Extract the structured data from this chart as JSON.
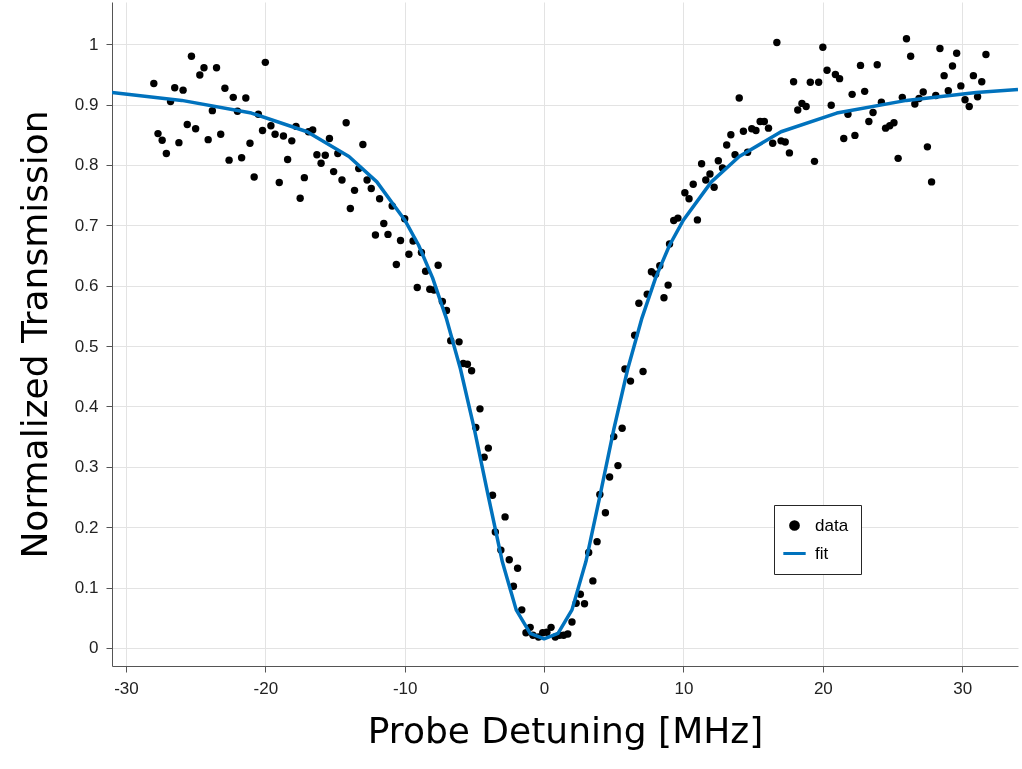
{
  "chart_data": {
    "type": "scatter",
    "xlabel": "Probe Detuning [MHz]",
    "ylabel": "Normalized Transmission",
    "xlim": [
      -31,
      34
    ],
    "ylim": [
      -0.03,
      1.07
    ],
    "xticks": [
      -30,
      -20,
      -10,
      0,
      10,
      20,
      30
    ],
    "yticks": [
      0,
      0.1,
      0.2,
      0.3,
      0.4,
      0.5,
      0.6,
      0.7,
      0.8,
      0.9,
      1
    ],
    "grid": true,
    "legend": "bottom right",
    "marker": "circle",
    "series": [
      {
        "name": "data",
        "color": "#000000",
        "x": [
          -28.0,
          -27.7,
          -27.4,
          -27.1,
          -26.8,
          -26.5,
          -26.2,
          -25.9,
          -25.6,
          -25.3,
          -25.0,
          -24.7,
          -24.4,
          -24.1,
          -23.8,
          -23.5,
          -23.2,
          -22.9,
          -22.6,
          -22.3,
          -22.0,
          -21.7,
          -21.4,
          -21.1,
          -20.8,
          -20.5,
          -20.2,
          -20.0,
          -19.6,
          -19.3,
          -19.0,
          -18.7,
          -18.4,
          -18.1,
          -17.8,
          -17.5,
          -17.2,
          -16.9,
          -16.6,
          -16.3,
          -16.0,
          -15.7,
          -15.4,
          -15.1,
          -14.8,
          -14.5,
          -14.2,
          -13.9,
          -13.6,
          -13.3,
          -13.0,
          -12.7,
          -12.4,
          -12.1,
          -11.8,
          -11.5,
          -11.2,
          -10.9,
          -10.6,
          -10.3,
          -10.0,
          -9.7,
          -9.4,
          -9.1,
          -8.8,
          -8.5,
          -8.2,
          -7.9,
          -7.6,
          -7.3,
          -7.0,
          -6.7,
          -6.1,
          -5.8,
          -5.5,
          -5.2,
          -4.9,
          -4.6,
          -4.3,
          -4.0,
          -3.7,
          -3.5,
          -3.1,
          -2.8,
          -2.5,
          -2.2,
          -1.9,
          -1.6,
          -1.3,
          -1.0,
          -0.8,
          -0.4,
          -0.1,
          0.2,
          0.5,
          0.8,
          1.1,
          1.4,
          1.7,
          2.0,
          2.3,
          2.6,
          2.9,
          3.2,
          3.5,
          3.8,
          4.0,
          4.4,
          4.7,
          5.0,
          5.3,
          5.6,
          5.8,
          6.2,
          6.5,
          6.8,
          7.1,
          7.4,
          7.7,
          8.0,
          8.3,
          8.6,
          8.9,
          9.0,
          9.3,
          9.6,
          10.1,
          10.4,
          10.7,
          11.0,
          11.3,
          11.6,
          11.9,
          12.2,
          12.5,
          12.8,
          13.1,
          13.4,
          13.7,
          14.0,
          14.3,
          14.6,
          14.9,
          15.2,
          15.5,
          15.8,
          16.1,
          16.4,
          16.7,
          17.0,
          17.3,
          17.6,
          17.9,
          18.2,
          18.5,
          18.8,
          19.1,
          19.4,
          19.7,
          20.0,
          20.3,
          20.6,
          20.9,
          21.2,
          21.5,
          21.8,
          22.1,
          22.3,
          22.7,
          23.0,
          23.3,
          23.6,
          23.9,
          24.2,
          24.5,
          24.8,
          25.1,
          25.4,
          25.7,
          26.0,
          26.3,
          26.6,
          26.9,
          27.2,
          27.5,
          27.8,
          28.1,
          28.4,
          28.7,
          29.0,
          29.3,
          29.6,
          29.9,
          30.2,
          30.5,
          30.8,
          31.1,
          31.4,
          31.7
        ],
        "values": [
          0.935,
          0.852,
          0.841,
          0.819,
          0.905,
          0.928,
          0.837,
          0.924,
          0.867,
          0.98,
          0.86,
          0.949,
          0.961,
          0.842,
          0.89,
          0.961,
          0.851,
          0.927,
          0.808,
          0.912,
          0.889,
          0.812,
          0.911,
          0.836,
          0.78,
          0.884,
          0.857,
          0.97,
          0.865,
          0.851,
          0.771,
          0.848,
          0.809,
          0.84,
          0.864,
          0.745,
          0.779,
          0.855,
          0.858,
          0.817,
          0.803,
          0.816,
          0.844,
          0.789,
          0.819,
          0.775,
          0.87,
          0.728,
          0.758,
          0.794,
          0.834,
          0.775,
          0.761,
          0.684,
          0.744,
          0.703,
          0.685,
          0.732,
          0.635,
          0.675,
          0.711,
          0.652,
          0.674,
          0.597,
          0.655,
          0.624,
          0.594,
          0.593,
          0.634,
          0.574,
          0.559,
          0.509,
          0.507,
          0.471,
          0.47,
          0.459,
          0.365,
          0.396,
          0.316,
          0.331,
          0.253,
          0.192,
          0.162,
          0.217,
          0.146,
          0.102,
          0.132,
          0.063,
          0.025,
          0.034,
          0.021,
          0.018,
          0.025,
          0.026,
          0.034,
          0.018,
          0.021,
          0.021,
          0.023,
          0.043,
          0.074,
          0.089,
          0.073,
          0.158,
          0.111,
          0.176,
          0.254,
          0.224,
          0.283,
          0.35,
          0.302,
          0.364,
          0.462,
          0.442,
          0.518,
          0.571,
          0.458,
          0.586,
          0.623,
          0.619,
          0.633,
          0.58,
          0.601,
          0.669,
          0.708,
          0.712,
          0.754,
          0.744,
          0.768,
          0.709,
          0.802,
          0.775,
          0.785,
          0.763,
          0.807,
          0.795,
          0.833,
          0.85,
          0.817,
          0.911,
          0.856,
          0.821,
          0.86,
          0.857,
          0.872,
          0.872,
          0.861,
          0.836,
          1.003,
          0.84,
          0.838,
          0.82,
          0.938,
          0.891,
          0.902,
          0.897,
          0.937,
          0.806,
          0.937,
          0.995,
          0.957,
          0.899,
          0.95,
          0.943,
          0.844,
          0.884,
          0.917,
          0.849,
          0.965,
          0.922,
          0.872,
          0.887,
          0.966,
          0.904,
          0.861,
          0.865,
          0.87,
          0.811,
          0.912,
          1.009,
          0.98,
          0.901,
          0.91,
          0.921,
          0.83,
          0.772,
          0.915,
          0.993,
          0.948,
          0.923,
          0.964,
          0.985,
          0.931,
          0.908,
          0.897,
          0.948,
          0.913,
          0.938,
          0.983
        ]
      },
      {
        "name": "fit",
        "type": "line",
        "color": "#0072bd",
        "line_style": "solid",
        "marker": "none",
        "x": [
          -31,
          -26,
          -21,
          -17,
          -14,
          -12,
          -10,
          -9,
          -8,
          -7,
          -6,
          -5,
          -4,
          -3,
          -2,
          -1,
          0,
          1,
          2,
          3,
          4,
          5,
          6,
          7,
          8,
          9,
          10,
          12,
          14,
          17,
          21,
          26,
          31,
          34
        ],
        "values": [
          0.92,
          0.907,
          0.886,
          0.855,
          0.814,
          0.772,
          0.709,
          0.667,
          0.613,
          0.545,
          0.462,
          0.362,
          0.251,
          0.143,
          0.063,
          0.024,
          0.015,
          0.024,
          0.063,
          0.143,
          0.251,
          0.362,
          0.462,
          0.545,
          0.613,
          0.667,
          0.709,
          0.772,
          0.814,
          0.855,
          0.886,
          0.907,
          0.92,
          0.925
        ]
      }
    ]
  }
}
